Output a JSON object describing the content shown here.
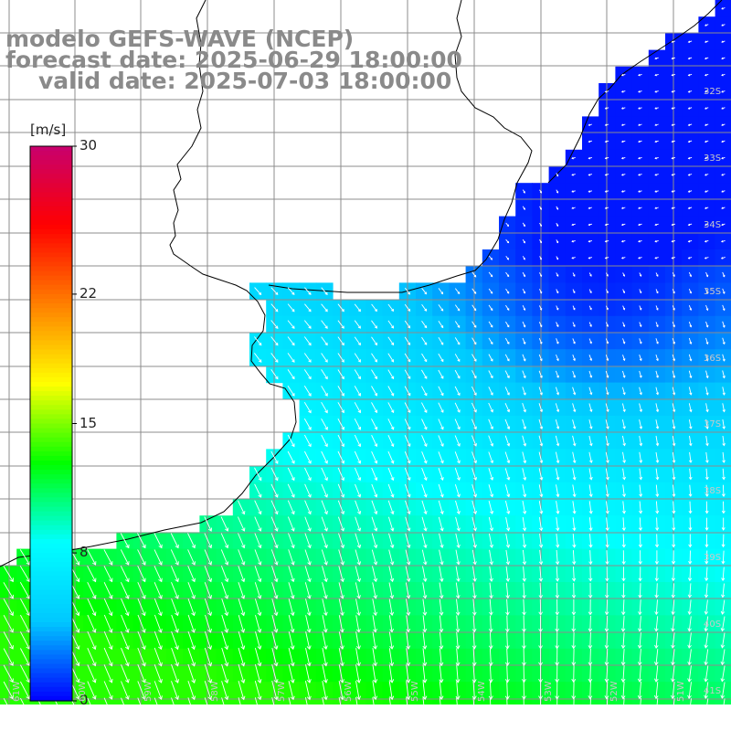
{
  "title": {
    "model": "modelo GEFS-WAVE (NCEP)",
    "forecast": "forecast date: 2025-06-29 18:00:00",
    "valid": "valid date: 2025-07-03 18:00:00"
  },
  "colorbar": {
    "unit": "[m/s]",
    "ticks": [
      {
        "value": 30,
        "label": "30"
      },
      {
        "value": 22,
        "label": "22"
      },
      {
        "value": 15,
        "label": "15"
      },
      {
        "value": 8,
        "label": "8"
      },
      {
        "value": 0,
        "label": "0"
      }
    ],
    "min": 0,
    "max": 30,
    "colors": [
      "#0000ff",
      "#00c8ff",
      "#00ffff",
      "#00ff00",
      "#ffff00",
      "#ff8000",
      "#ff0000",
      "#c8006e"
    ]
  },
  "axes": {
    "lat_labels": [
      "32S",
      "33S",
      "34S",
      "35S",
      "36S",
      "37S",
      "38S",
      "39S",
      "40S",
      "41S"
    ],
    "lon_labels": [
      "61W",
      "60W",
      "59W",
      "58W",
      "57W",
      "56W",
      "55W",
      "54W",
      "53W",
      "52W",
      "51W"
    ]
  },
  "colors": {
    "land": "#ffffff",
    "grid": "#8c8c8c",
    "coast": "#000000",
    "arrows": "#ffffff",
    "title": "#8a8a8a"
  }
}
